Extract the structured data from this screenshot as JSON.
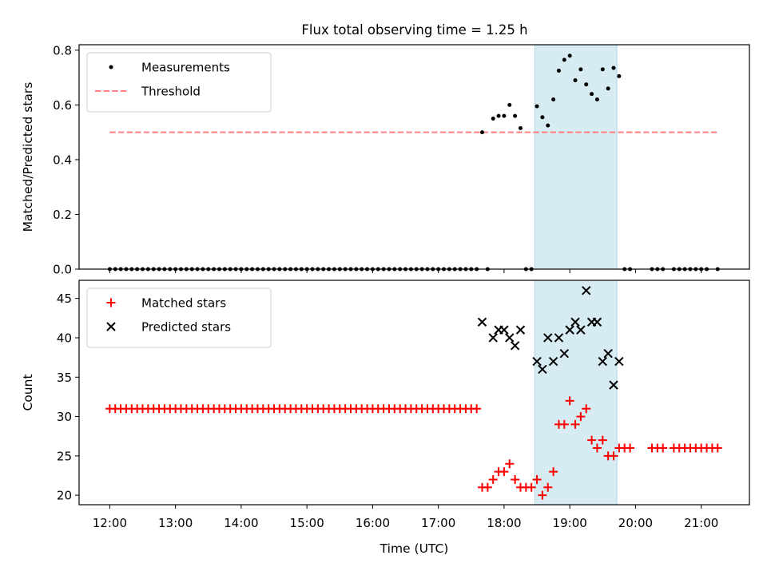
{
  "title": "Flux total observing time = 1.25 h",
  "colors": {
    "measurement": "#000000",
    "threshold": "#ff7f7f",
    "matched": "#ff0000",
    "predicted": "#000000",
    "shade": "#add8e6"
  },
  "chart_data": [
    {
      "type": "scatter",
      "ylabel": "Matched/Predicted stars",
      "ylim": [
        0,
        0.82
      ],
      "yticks": [
        "0.0",
        "0.2",
        "0.4",
        "0.6",
        "0.8"
      ],
      "xlim": [
        "11:32",
        "21:44"
      ],
      "legend_position": "top-left",
      "shaded_span": [
        "18:28",
        "19:43"
      ],
      "threshold": {
        "name": "Threshold",
        "y": 0.5,
        "x_range": [
          "12:00",
          "21:15"
        ]
      },
      "series": [
        {
          "name": "Measurements",
          "points": [
            [
              "12:00",
              0
            ],
            [
              "12:05",
              0
            ],
            [
              "12:10",
              0
            ],
            [
              "12:15",
              0
            ],
            [
              "12:20",
              0
            ],
            [
              "12:25",
              0
            ],
            [
              "12:30",
              0
            ],
            [
              "12:35",
              0
            ],
            [
              "12:40",
              0
            ],
            [
              "12:45",
              0
            ],
            [
              "12:50",
              0
            ],
            [
              "12:55",
              0
            ],
            [
              "13:00",
              0
            ],
            [
              "13:05",
              0
            ],
            [
              "13:10",
              0
            ],
            [
              "13:15",
              0
            ],
            [
              "13:20",
              0
            ],
            [
              "13:25",
              0
            ],
            [
              "13:30",
              0
            ],
            [
              "13:35",
              0
            ],
            [
              "13:40",
              0
            ],
            [
              "13:45",
              0
            ],
            [
              "13:50",
              0
            ],
            [
              "13:55",
              0
            ],
            [
              "14:00",
              0
            ],
            [
              "14:05",
              0
            ],
            [
              "14:10",
              0
            ],
            [
              "14:15",
              0
            ],
            [
              "14:20",
              0
            ],
            [
              "14:25",
              0
            ],
            [
              "14:30",
              0
            ],
            [
              "14:35",
              0
            ],
            [
              "14:40",
              0
            ],
            [
              "14:45",
              0
            ],
            [
              "14:50",
              0
            ],
            [
              "14:55",
              0
            ],
            [
              "15:00",
              0
            ],
            [
              "15:05",
              0
            ],
            [
              "15:10",
              0
            ],
            [
              "15:15",
              0
            ],
            [
              "15:20",
              0
            ],
            [
              "15:25",
              0
            ],
            [
              "15:30",
              0
            ],
            [
              "15:35",
              0
            ],
            [
              "15:40",
              0
            ],
            [
              "15:45",
              0
            ],
            [
              "15:50",
              0
            ],
            [
              "15:55",
              0
            ],
            [
              "16:00",
              0
            ],
            [
              "16:05",
              0
            ],
            [
              "16:10",
              0
            ],
            [
              "16:15",
              0
            ],
            [
              "16:20",
              0
            ],
            [
              "16:25",
              0
            ],
            [
              "16:30",
              0
            ],
            [
              "16:35",
              0
            ],
            [
              "16:40",
              0
            ],
            [
              "16:45",
              0
            ],
            [
              "16:50",
              0
            ],
            [
              "16:55",
              0
            ],
            [
              "17:00",
              0
            ],
            [
              "17:05",
              0
            ],
            [
              "17:10",
              0
            ],
            [
              "17:15",
              0
            ],
            [
              "17:20",
              0
            ],
            [
              "17:25",
              0
            ],
            [
              "17:30",
              0
            ],
            [
              "17:35",
              0
            ],
            [
              "17:40",
              0.5
            ],
            [
              "17:45",
              0
            ],
            [
              "17:50",
              0.55
            ],
            [
              "17:55",
              0.56
            ],
            [
              "18:00",
              0.56
            ],
            [
              "18:05",
              0.6
            ],
            [
              "18:10",
              0.56
            ],
            [
              "18:15",
              0.515
            ],
            [
              "18:20",
              0
            ],
            [
              "18:25",
              0
            ],
            [
              "18:30",
              0.595
            ],
            [
              "18:35",
              0.555
            ],
            [
              "18:40",
              0.525
            ],
            [
              "18:45",
              0.62
            ],
            [
              "18:50",
              0.725
            ],
            [
              "18:55",
              0.765
            ],
            [
              "19:00",
              0.78
            ],
            [
              "19:05",
              0.69
            ],
            [
              "19:10",
              0.73
            ],
            [
              "19:15",
              0.675
            ],
            [
              "19:20",
              0.64
            ],
            [
              "19:25",
              0.62
            ],
            [
              "19:30",
              0.73
            ],
            [
              "19:35",
              0.66
            ],
            [
              "19:40",
              0.735
            ],
            [
              "19:45",
              0.705
            ],
            [
              "19:50",
              0
            ],
            [
              "19:55",
              0
            ],
            [
              "20:15",
              0
            ],
            [
              "20:20",
              0
            ],
            [
              "20:25",
              0
            ],
            [
              "20:35",
              0
            ],
            [
              "20:40",
              0
            ],
            [
              "20:45",
              0
            ],
            [
              "20:50",
              0
            ],
            [
              "20:55",
              0
            ],
            [
              "21:00",
              0
            ],
            [
              "21:05",
              0
            ],
            [
              "21:15",
              0
            ]
          ]
        }
      ]
    },
    {
      "type": "scatter",
      "xlabel": "Time (UTC)",
      "ylabel": "Count",
      "ylim": [
        18.8,
        47.3
      ],
      "yticks": [
        "20",
        "25",
        "30",
        "35",
        "40",
        "45"
      ],
      "xticks": [
        "12:00",
        "13:00",
        "14:00",
        "15:00",
        "16:00",
        "17:00",
        "18:00",
        "19:00",
        "20:00",
        "21:00"
      ],
      "xlim": [
        "11:32",
        "21:44"
      ],
      "legend_position": "top-left",
      "shaded_span": [
        "18:28",
        "19:43"
      ],
      "series": [
        {
          "name": "Matched stars",
          "marker": "plus",
          "points": [
            [
              "12:00",
              31
            ],
            [
              "12:05",
              31
            ],
            [
              "12:10",
              31
            ],
            [
              "12:15",
              31
            ],
            [
              "12:20",
              31
            ],
            [
              "12:25",
              31
            ],
            [
              "12:30",
              31
            ],
            [
              "12:35",
              31
            ],
            [
              "12:40",
              31
            ],
            [
              "12:45",
              31
            ],
            [
              "12:50",
              31
            ],
            [
              "12:55",
              31
            ],
            [
              "13:00",
              31
            ],
            [
              "13:05",
              31
            ],
            [
              "13:10",
              31
            ],
            [
              "13:15",
              31
            ],
            [
              "13:20",
              31
            ],
            [
              "13:25",
              31
            ],
            [
              "13:30",
              31
            ],
            [
              "13:35",
              31
            ],
            [
              "13:40",
              31
            ],
            [
              "13:45",
              31
            ],
            [
              "13:50",
              31
            ],
            [
              "13:55",
              31
            ],
            [
              "14:00",
              31
            ],
            [
              "14:05",
              31
            ],
            [
              "14:10",
              31
            ],
            [
              "14:15",
              31
            ],
            [
              "14:20",
              31
            ],
            [
              "14:25",
              31
            ],
            [
              "14:30",
              31
            ],
            [
              "14:35",
              31
            ],
            [
              "14:40",
              31
            ],
            [
              "14:45",
              31
            ],
            [
              "14:50",
              31
            ],
            [
              "14:55",
              31
            ],
            [
              "15:00",
              31
            ],
            [
              "15:05",
              31
            ],
            [
              "15:10",
              31
            ],
            [
              "15:15",
              31
            ],
            [
              "15:20",
              31
            ],
            [
              "15:25",
              31
            ],
            [
              "15:30",
              31
            ],
            [
              "15:35",
              31
            ],
            [
              "15:40",
              31
            ],
            [
              "15:45",
              31
            ],
            [
              "15:50",
              31
            ],
            [
              "15:55",
              31
            ],
            [
              "16:00",
              31
            ],
            [
              "16:05",
              31
            ],
            [
              "16:10",
              31
            ],
            [
              "16:15",
              31
            ],
            [
              "16:20",
              31
            ],
            [
              "16:25",
              31
            ],
            [
              "16:30",
              31
            ],
            [
              "16:35",
              31
            ],
            [
              "16:40",
              31
            ],
            [
              "16:45",
              31
            ],
            [
              "16:50",
              31
            ],
            [
              "16:55",
              31
            ],
            [
              "17:00",
              31
            ],
            [
              "17:05",
              31
            ],
            [
              "17:10",
              31
            ],
            [
              "17:15",
              31
            ],
            [
              "17:20",
              31
            ],
            [
              "17:25",
              31
            ],
            [
              "17:30",
              31
            ],
            [
              "17:35",
              31
            ],
            [
              "17:40",
              21
            ],
            [
              "17:45",
              21
            ],
            [
              "17:50",
              22
            ],
            [
              "17:55",
              23
            ],
            [
              "18:00",
              23
            ],
            [
              "18:05",
              24
            ],
            [
              "18:10",
              22
            ],
            [
              "18:15",
              21
            ],
            [
              "18:20",
              21
            ],
            [
              "18:25",
              21
            ],
            [
              "18:30",
              22
            ],
            [
              "18:35",
              20
            ],
            [
              "18:40",
              21
            ],
            [
              "18:45",
              23
            ],
            [
              "18:50",
              29
            ],
            [
              "18:55",
              29
            ],
            [
              "19:00",
              32
            ],
            [
              "19:05",
              29
            ],
            [
              "19:10",
              30
            ],
            [
              "19:15",
              31
            ],
            [
              "19:20",
              27
            ],
            [
              "19:25",
              26
            ],
            [
              "19:30",
              27
            ],
            [
              "19:35",
              25
            ],
            [
              "19:40",
              25
            ],
            [
              "19:45",
              26
            ],
            [
              "19:50",
              26
            ],
            [
              "19:55",
              26
            ],
            [
              "20:15",
              26
            ],
            [
              "20:20",
              26
            ],
            [
              "20:25",
              26
            ],
            [
              "20:35",
              26
            ],
            [
              "20:40",
              26
            ],
            [
              "20:45",
              26
            ],
            [
              "20:50",
              26
            ],
            [
              "20:55",
              26
            ],
            [
              "21:00",
              26
            ],
            [
              "21:05",
              26
            ],
            [
              "21:10",
              26
            ],
            [
              "21:15",
              26
            ]
          ]
        },
        {
          "name": "Predicted stars",
          "marker": "x",
          "points": [
            [
              "17:40",
              42
            ],
            [
              "17:50",
              40
            ],
            [
              "17:55",
              41
            ],
            [
              "18:00",
              41
            ],
            [
              "18:05",
              40
            ],
            [
              "18:10",
              39
            ],
            [
              "18:15",
              41
            ],
            [
              "18:30",
              37
            ],
            [
              "18:35",
              36
            ],
            [
              "18:40",
              40
            ],
            [
              "18:45",
              37
            ],
            [
              "18:50",
              40
            ],
            [
              "18:55",
              38
            ],
            [
              "19:00",
              41
            ],
            [
              "19:05",
              42
            ],
            [
              "19:10",
              41
            ],
            [
              "19:15",
              46
            ],
            [
              "19:20",
              42
            ],
            [
              "19:25",
              42
            ],
            [
              "19:30",
              37
            ],
            [
              "19:35",
              38
            ],
            [
              "19:40",
              34
            ],
            [
              "19:45",
              37
            ]
          ]
        }
      ]
    }
  ]
}
